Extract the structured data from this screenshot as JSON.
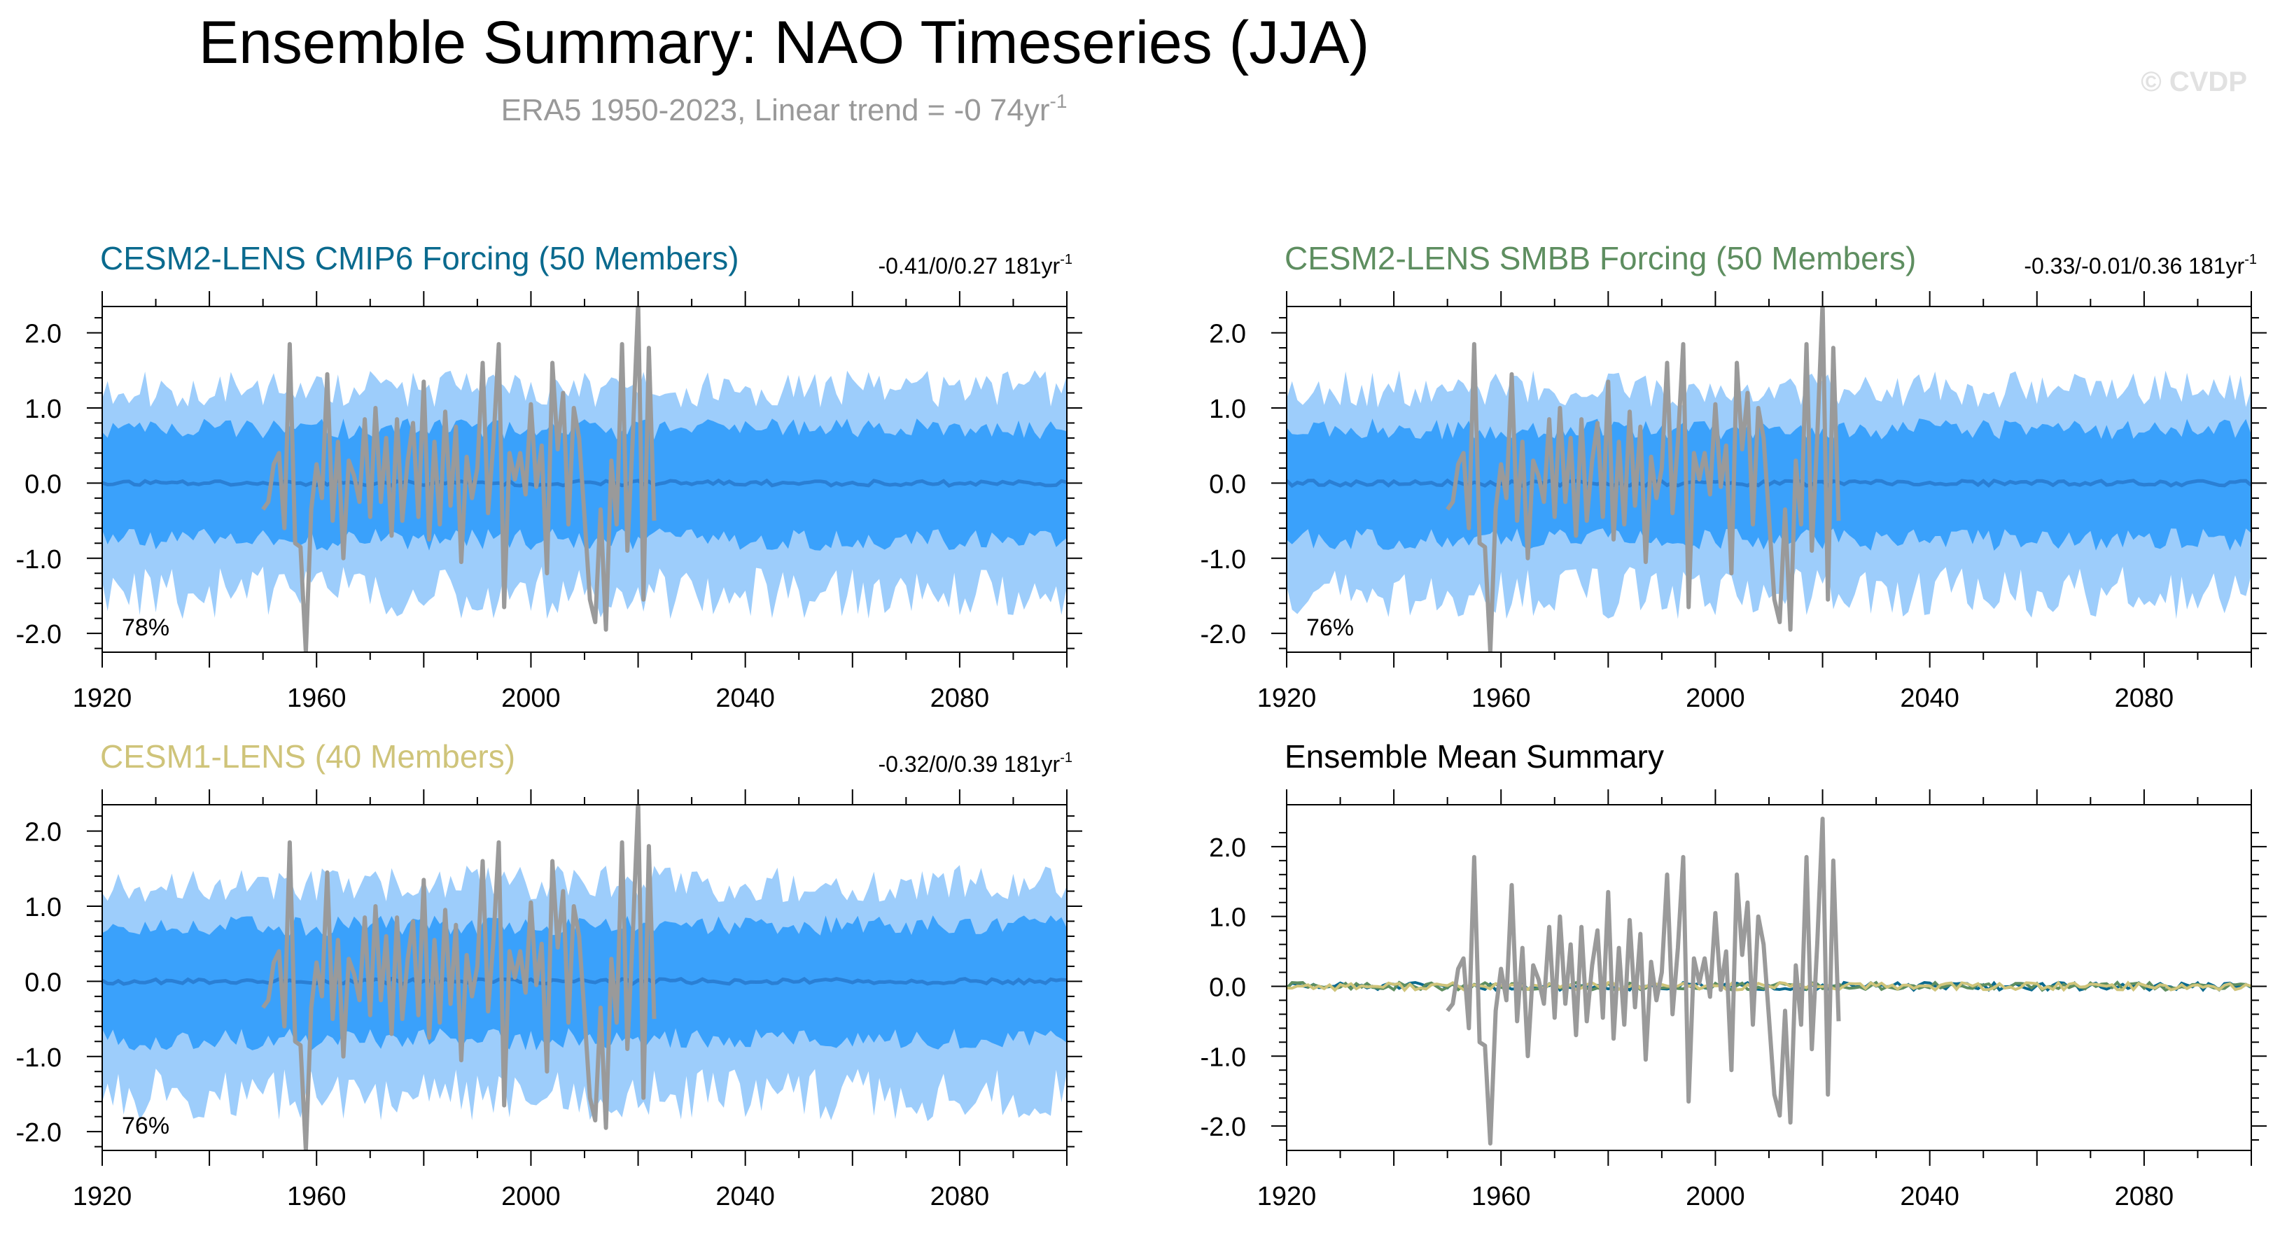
{
  "page": {
    "title": "Ensemble Summary: NAO Timeseries (JJA)",
    "subtitle_main": "ERA5 1950-2023, Linear trend = -0 74yr",
    "subtitle_sup": "-1",
    "watermark": "© CVDP"
  },
  "colors": {
    "outer_band": "#9dcdfb",
    "inner_band": "#3aa1fb",
    "ens_mean": "#2a7fd4",
    "obs": "#9a9a9a",
    "cesm2_cmip6": "#0a6a8e",
    "cesm2_smbb": "#5e8e60",
    "cesm1": "#cfc47a",
    "axis": "#000000"
  },
  "chart_data": [
    {
      "id": "p1",
      "type": "area",
      "title": "CESM2-LENS CMIP6 Forcing (50 Members)",
      "title_color": "#0a6a8e",
      "trend_label": "-0.41/0/0.27 181yr",
      "trend_sup": "-1",
      "percent_label": "78%",
      "xlim": [
        1920,
        2100
      ],
      "ylim": [
        -2.25,
        2.35
      ],
      "xticks": [
        "1920",
        "1960",
        "2000",
        "2040",
        "2080"
      ],
      "yticks": [
        "2.0",
        "1.0",
        "0.0",
        "-1.0",
        "-2.0"
      ],
      "inner_amp": 0.72,
      "outer_amp": 1.25,
      "seed": 11
    },
    {
      "id": "p2",
      "type": "area",
      "title": "CESM2-LENS SMBB Forcing (50 Members)",
      "title_color": "#5e8e60",
      "trend_label": "-0.33/-0.01/0.36 181yr",
      "trend_sup": "-1",
      "percent_label": "76%",
      "xlim": [
        1920,
        2100
      ],
      "ylim": [
        -2.25,
        2.35
      ],
      "xticks": [
        "1920",
        "1960",
        "2000",
        "2040",
        "2080"
      ],
      "yticks": [
        "2.0",
        "1.0",
        "0.0",
        "-1.0",
        "-2.0"
      ],
      "inner_amp": 0.72,
      "outer_amp": 1.25,
      "seed": 23
    },
    {
      "id": "p3",
      "type": "area",
      "title": "CESM1-LENS (40 Members)",
      "title_color": "#cfc47a",
      "trend_label": "-0.32/0/0.39 181yr",
      "trend_sup": "-1",
      "percent_label": "76%",
      "xlim": [
        1920,
        2100
      ],
      "ylim": [
        -2.25,
        2.35
      ],
      "xticks": [
        "1920",
        "1960",
        "2000",
        "2040",
        "2080"
      ],
      "yticks": [
        "2.0",
        "1.0",
        "0.0",
        "-1.0",
        "-2.0"
      ],
      "inner_amp": 0.74,
      "outer_amp": 1.3,
      "seed": 37
    },
    {
      "id": "p4",
      "type": "line",
      "title": "Ensemble Mean Summary",
      "title_color": "#000000",
      "xlim": [
        1920,
        2100
      ],
      "ylim": [
        -2.35,
        2.6
      ],
      "xticks": [
        "1920",
        "1960",
        "2000",
        "2040",
        "2080"
      ],
      "yticks": [
        "2.0",
        "1.0",
        "0.0",
        "-1.0",
        "-2.0"
      ]
    }
  ],
  "observations": {
    "name": "ERA5",
    "years": [
      1950,
      2023
    ],
    "values": [
      -0.35,
      -0.25,
      0.25,
      0.4,
      -0.6,
      1.85,
      -0.8,
      -0.85,
      -2.25,
      -0.35,
      0.25,
      -0.2,
      1.45,
      -0.5,
      0.55,
      -1.0,
      0.3,
      0.1,
      -0.25,
      0.85,
      -0.45,
      1.0,
      -0.25,
      0.6,
      -0.7,
      0.85,
      -0.5,
      0.3,
      0.8,
      -0.45,
      1.35,
      -0.75,
      0.55,
      -0.55,
      0.95,
      -0.3,
      0.75,
      -1.05,
      0.35,
      -0.2,
      0.2,
      1.6,
      -0.4,
      0.55,
      1.85,
      -1.65,
      0.4,
      0.05,
      0.4,
      -0.15,
      1.05,
      -0.05,
      0.5,
      -1.2,
      1.6,
      0.45,
      1.2,
      -0.55,
      1.0,
      0.6,
      -0.45,
      -1.55,
      -1.85,
      -0.35,
      -1.95,
      0.3,
      -0.55,
      1.85,
      -0.9,
      0.6,
      2.4,
      -1.55,
      1.8,
      -0.5
    ]
  }
}
